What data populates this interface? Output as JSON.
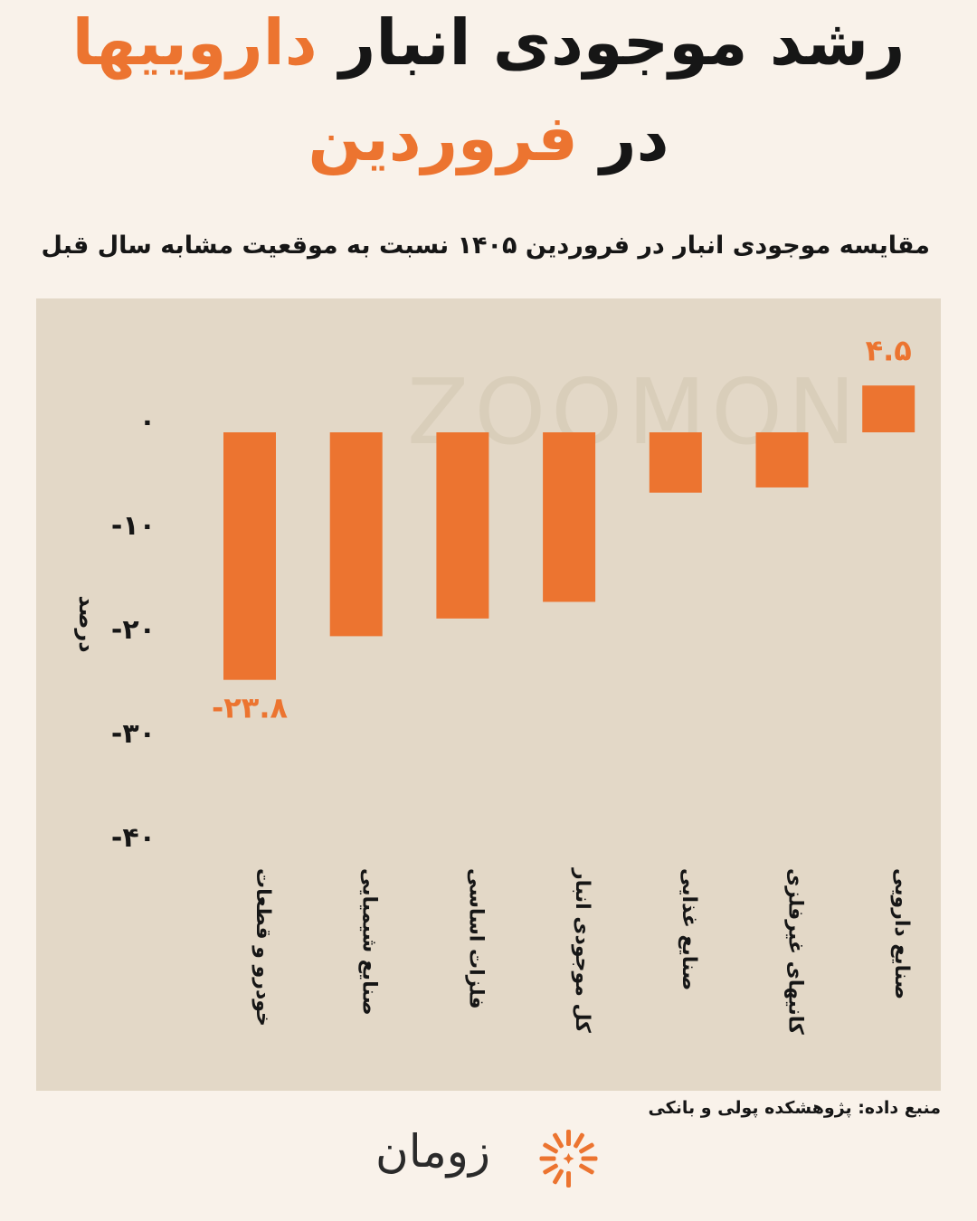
{
  "header": {
    "title_line1_part1": "رشد موجودی انبار",
    "title_line1_accent": "داروییها",
    "title_line2_part1": "در",
    "title_line2_accent": "فروردین",
    "subtitle": "مقایسه موجودی انبار در فروردین ۱۴۰۵ نسبت به موقعیت مشابه سال قبل"
  },
  "chart_data": {
    "type": "bar",
    "categories": [
      "خودرو و قطعات",
      "صنایع شیمیایی",
      "فلزات اساسی",
      "کل موجودی انبار",
      "صنایع غذایی",
      "کانیهای غیرفلزی",
      "صنایع دارویی"
    ],
    "values": [
      -23.8,
      -19.6,
      -17.9,
      -16.3,
      -5.8,
      -5.3,
      4.5
    ],
    "value_labels": [
      "-۲۳.۸",
      "",
      "",
      "",
      "",
      "",
      "۴.۵"
    ],
    "ylabel": "درصد",
    "yticks": [
      0,
      -10,
      -20,
      -30,
      -40
    ],
    "ytick_labels": [
      "۰",
      "-۱۰",
      "-۲۰",
      "-۳۰",
      "-۴۰"
    ],
    "ylim": [
      -40,
      6
    ],
    "grid": false,
    "colors": {
      "bar": "#ec7430",
      "panel": "#e3d8c7",
      "value_label": "#ec7430"
    }
  },
  "watermark": "ZOOMON",
  "footer": {
    "source": "منبع داده: پژوهشکده پولی و بانکی",
    "logo_text": "زومان"
  }
}
